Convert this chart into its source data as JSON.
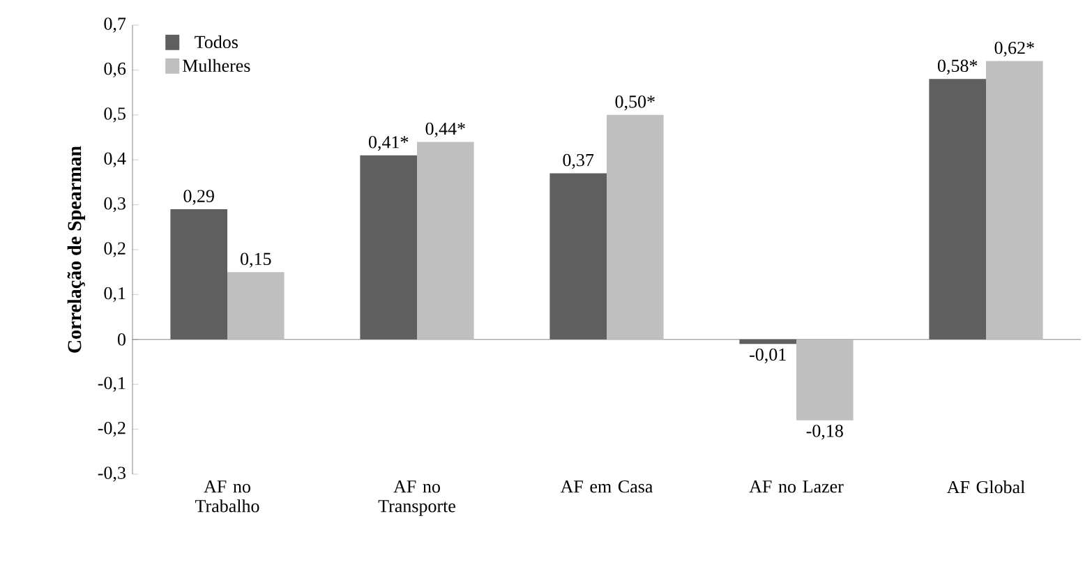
{
  "chart_data": {
    "type": "bar",
    "ylabel": "Correlação de Spearman",
    "categories": [
      "AF no Trabalho",
      "AF no Transporte",
      "AF em Casa",
      "AF no Lazer",
      "AF Global"
    ],
    "series": [
      {
        "name": "Todos",
        "color": "#5f5f5f",
        "values": [
          0.29,
          0.41,
          0.37,
          -0.01,
          0.58
        ],
        "value_labels": [
          "0,29",
          "0,41*",
          "0,37",
          "-0,01",
          "0,58*"
        ]
      },
      {
        "name": "Mulheres",
        "color": "#bfbfbf",
        "values": [
          0.15,
          0.44,
          0.5,
          -0.18,
          0.62
        ],
        "value_labels": [
          "0,15",
          "0,44*",
          "0,50*",
          "-0,18",
          "0,62*"
        ]
      }
    ],
    "ylim": [
      -0.3,
      0.7
    ],
    "yticks": [
      {
        "value": -0.3,
        "label": "-0,3"
      },
      {
        "value": -0.2,
        "label": "-0,2"
      },
      {
        "value": -0.1,
        "label": "-0,1"
      },
      0,
      {
        "value": 0.1,
        "label": "0,1"
      },
      {
        "value": 0.2,
        "label": "0,2"
      },
      {
        "value": 0.3,
        "label": "0,3"
      },
      {
        "value": 0.4,
        "label": "0,4"
      },
      {
        "value": 0.5,
        "label": "0,5"
      },
      {
        "value": 0.6,
        "label": "0,6"
      },
      {
        "value": 0.7,
        "label": "0,7"
      }
    ],
    "legend": "top left"
  }
}
